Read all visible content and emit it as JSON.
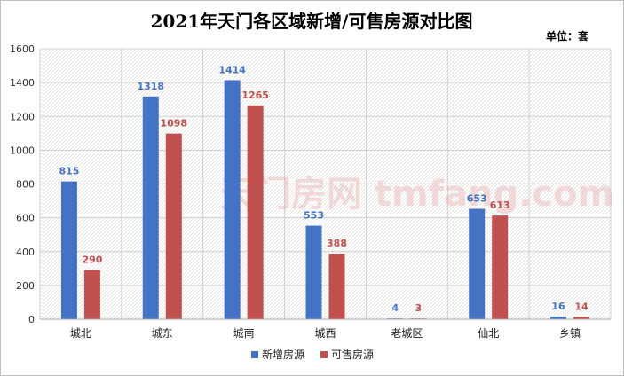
{
  "chart_data": {
    "type": "bar",
    "title": "2021年天门各区域新增/可售房源对比图",
    "unit_label": "单位：套",
    "categories": [
      "城北",
      "城东",
      "城南",
      "城西",
      "老城区",
      "仙北",
      "乡镇"
    ],
    "series": [
      {
        "name": "新增房源",
        "color": "#4472c4",
        "values": [
          815,
          1318,
          1414,
          553,
          4,
          653,
          16
        ]
      },
      {
        "name": "可售房源",
        "color": "#c0504d",
        "values": [
          290,
          1098,
          1265,
          388,
          3,
          613,
          14
        ]
      }
    ],
    "ylim": [
      0,
      1600
    ],
    "yticks": [
      0,
      200,
      400,
      600,
      800,
      1000,
      1200,
      1400,
      1600
    ],
    "grid": true,
    "legend_position": "bottom",
    "watermark": "天门房网 tmfang.com"
  }
}
